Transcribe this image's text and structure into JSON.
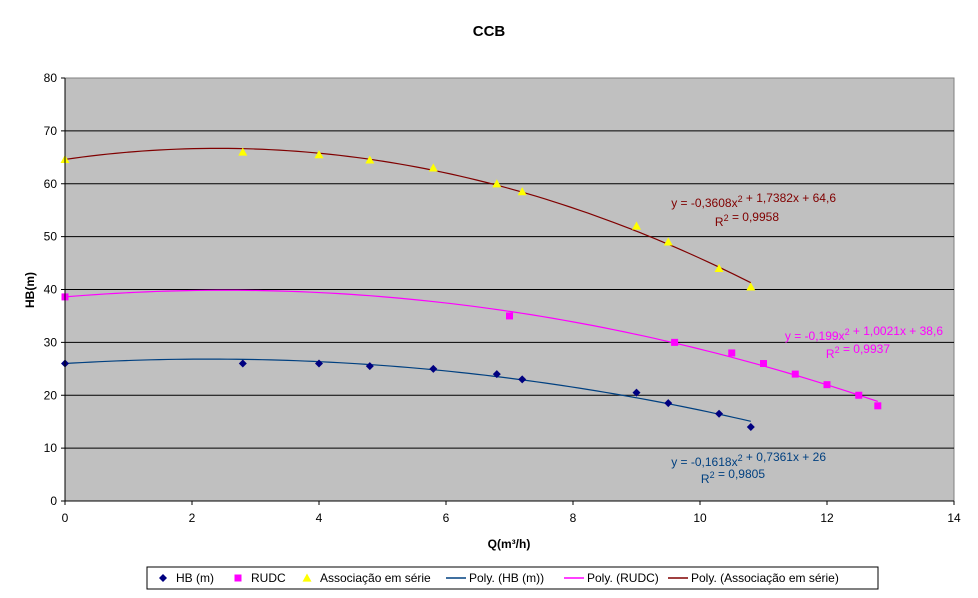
{
  "chart_data": {
    "type": "scatter",
    "title": "CCB",
    "xlabel": "Q(m³/h)",
    "ylabel": "HB(m)",
    "xlim": [
      0,
      14
    ],
    "ylim": [
      0,
      80
    ],
    "xticks": [
      0,
      2,
      4,
      6,
      8,
      10,
      12,
      14
    ],
    "yticks": [
      0,
      10,
      20,
      30,
      40,
      50,
      60,
      70,
      80
    ],
    "grid": "horizontal",
    "background": "#c0c0c0",
    "legend_position": "bottom",
    "series": [
      {
        "name": "HB (m)",
        "marker": "diamond",
        "color": "#000080",
        "x": [
          0,
          2.8,
          4,
          4.8,
          5.8,
          6.8,
          7.2,
          9,
          9.5,
          10.3,
          10.8
        ],
        "y": [
          26,
          26,
          26,
          25.5,
          25,
          24,
          23,
          20.5,
          18.5,
          16.5,
          14
        ]
      },
      {
        "name": "RUDC",
        "marker": "square",
        "color": "#ff00ff",
        "x": [
          0,
          7,
          9.6,
          10.5,
          11,
          11.5,
          12,
          12.5,
          12.8
        ],
        "y": [
          38.6,
          35,
          30,
          28,
          26,
          24,
          22,
          20,
          18
        ]
      },
      {
        "name": "Associação em série",
        "marker": "triangle",
        "color": "#ffff00",
        "x": [
          0,
          2.8,
          4,
          4.8,
          5.8,
          6.8,
          7.2,
          9,
          9.5,
          10.3,
          10.8
        ],
        "y": [
          64.6,
          66,
          65.5,
          64.5,
          63,
          60,
          58.5,
          52,
          49,
          44,
          40.5
        ]
      }
    ],
    "trendlines": [
      {
        "name": "Poly. (HB (m))",
        "color": "#004080",
        "coeffs": [
          -0.1618,
          0.7361,
          26
        ],
        "x_range": [
          0,
          10.8
        ],
        "equation": "y = -0,1618x² + 0,7361x + 26",
        "r2": "R² = 0,9805"
      },
      {
        "name": "Poly. (RUDC)",
        "color": "#ff00ff",
        "coeffs": [
          -0.199,
          1.0021,
          38.6
        ],
        "x_range": [
          0,
          12.8
        ],
        "equation": "y = -0,199x² + 1,0021x + 38,6",
        "r2": "R² = 0,9937"
      },
      {
        "name": "Poly. (Associação em série)",
        "color": "#800000",
        "coeffs": [
          -0.3608,
          1.7382,
          64.6
        ],
        "x_range": [
          0,
          10.8
        ],
        "equation": "y = -0,3608x² + 1,7382x + 64,6",
        "r2": "R² = 0,9958"
      }
    ]
  }
}
